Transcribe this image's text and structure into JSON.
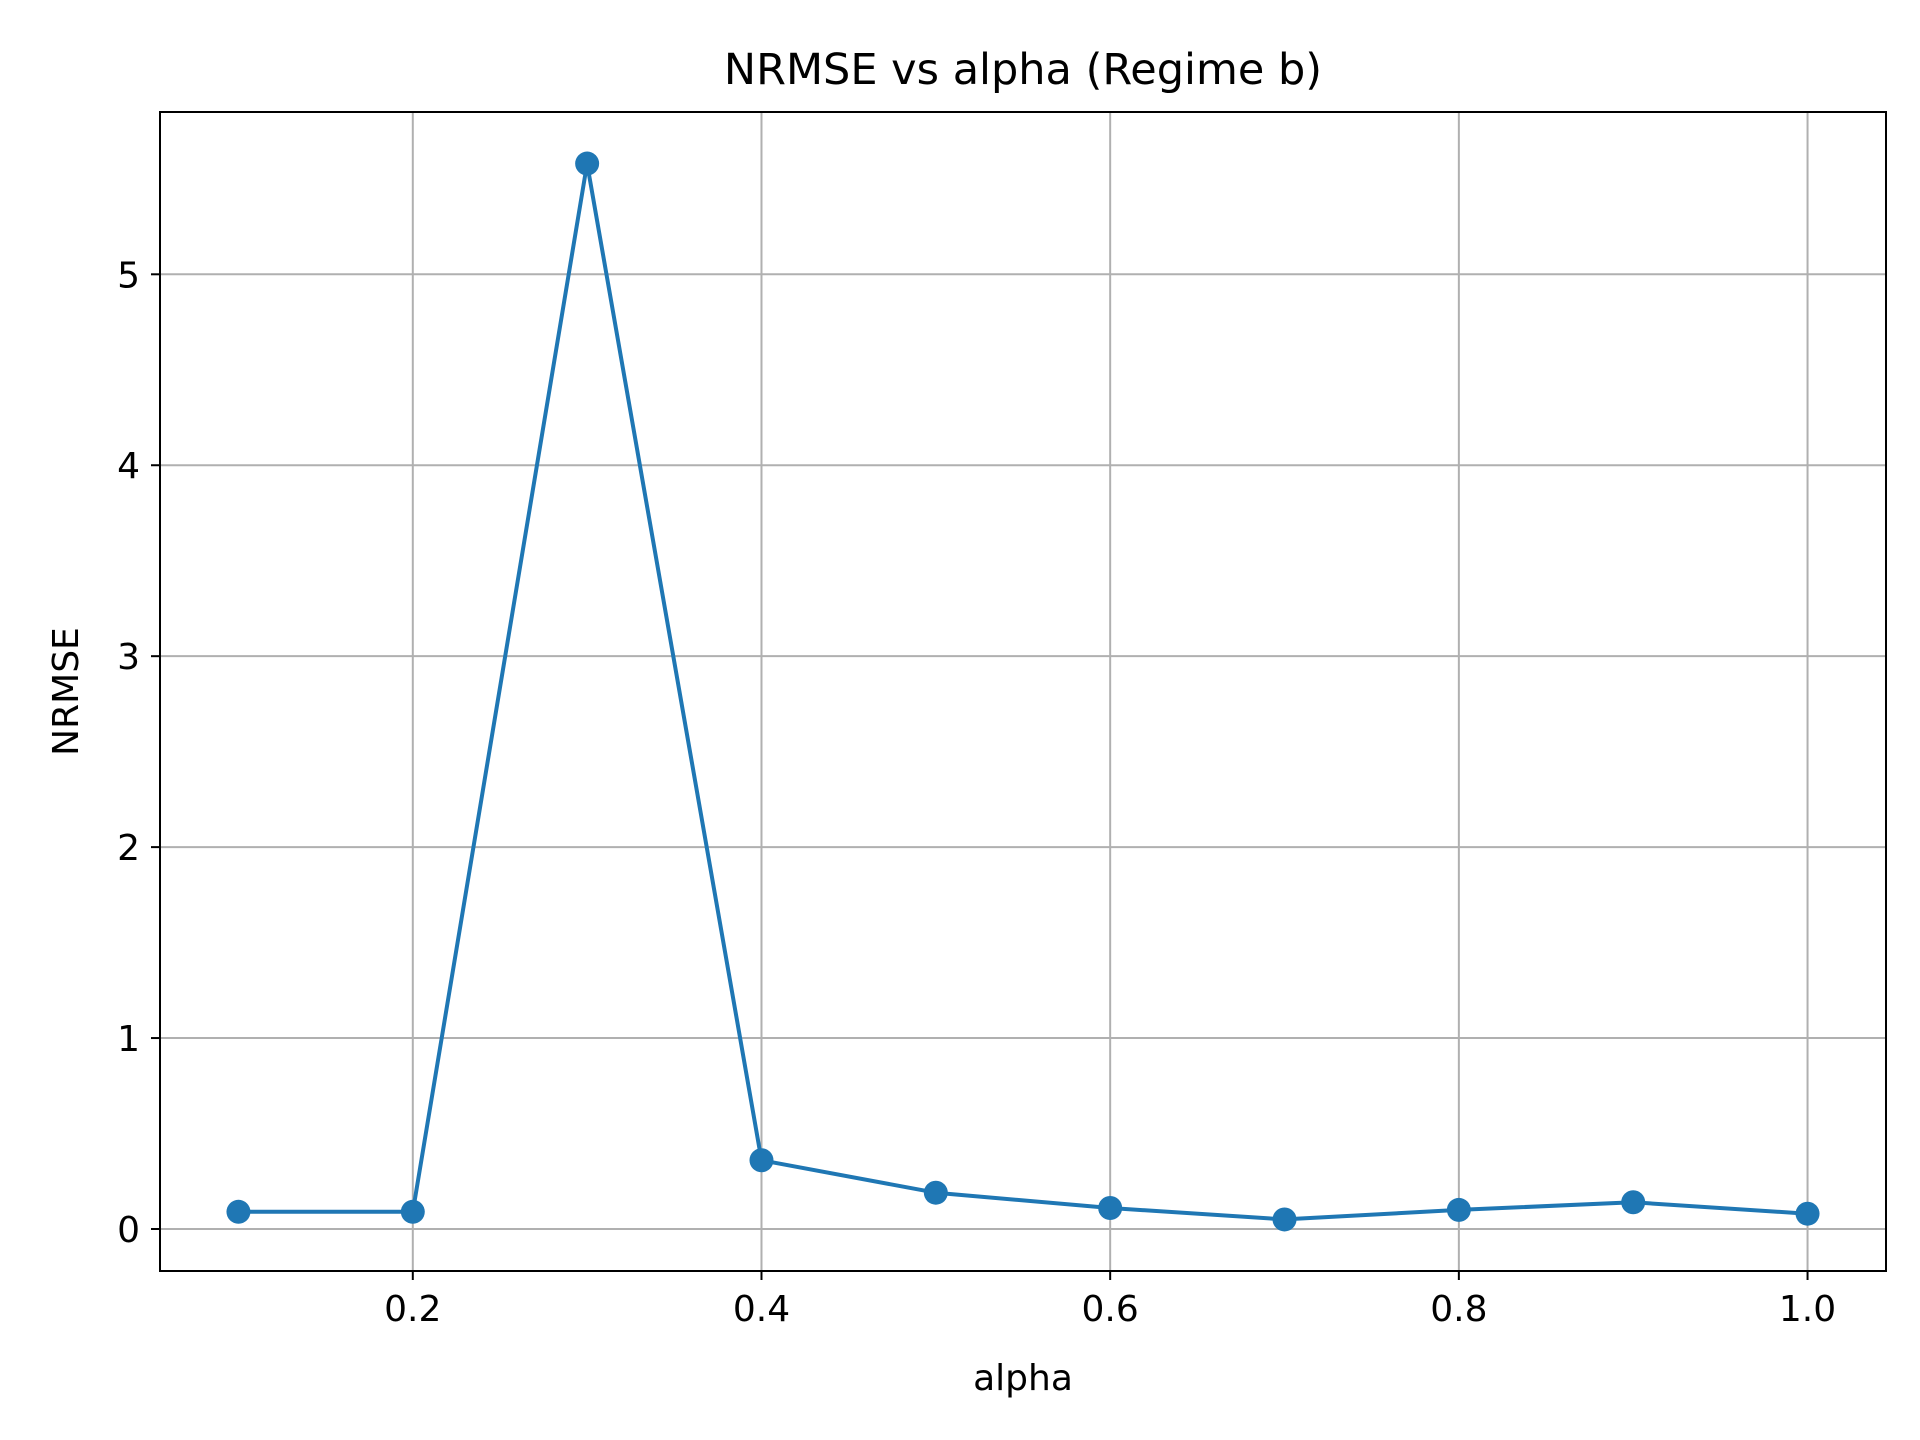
{
  "chart_data": {
    "type": "line",
    "title": "NRMSE vs alpha (Regime b)",
    "xlabel": "alpha",
    "ylabel": "NRMSE",
    "xlim": [
      0.055,
      1.045
    ],
    "ylim": [
      -0.22,
      5.85
    ],
    "xticks": [
      0.2,
      0.4,
      0.6,
      0.8,
      1.0
    ],
    "xtick_labels": [
      "0.2",
      "0.4",
      "0.6",
      "0.8",
      "1.0"
    ],
    "yticks": [
      0,
      1,
      2,
      3,
      4,
      5
    ],
    "ytick_labels": [
      "0",
      "1",
      "2",
      "3",
      "4",
      "5"
    ],
    "grid": true,
    "marker": "circle",
    "series": [
      {
        "color": "#1f77b4",
        "x": [
          0.1,
          0.2,
          0.3,
          0.4,
          0.5,
          0.6,
          0.7,
          0.8,
          0.9,
          1.0
        ],
        "y": [
          0.09,
          0.09,
          5.58,
          0.36,
          0.19,
          0.11,
          0.05,
          0.1,
          0.14,
          0.08
        ]
      }
    ]
  }
}
